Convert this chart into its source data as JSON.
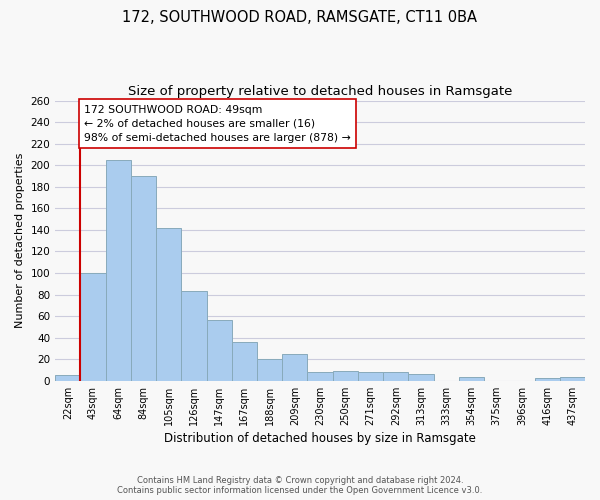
{
  "title": "172, SOUTHWOOD ROAD, RAMSGATE, CT11 0BA",
  "subtitle": "Size of property relative to detached houses in Ramsgate",
  "xlabel": "Distribution of detached houses by size in Ramsgate",
  "ylabel": "Number of detached properties",
  "bar_labels": [
    "22sqm",
    "43sqm",
    "64sqm",
    "84sqm",
    "105sqm",
    "126sqm",
    "147sqm",
    "167sqm",
    "188sqm",
    "209sqm",
    "230sqm",
    "250sqm",
    "271sqm",
    "292sqm",
    "313sqm",
    "333sqm",
    "354sqm",
    "375sqm",
    "396sqm",
    "416sqm",
    "437sqm"
  ],
  "bar_values": [
    5,
    100,
    205,
    190,
    142,
    83,
    56,
    36,
    20,
    25,
    8,
    9,
    8,
    8,
    6,
    0,
    4,
    0,
    0,
    3,
    4
  ],
  "bar_color": "#aaccee",
  "bar_edge_color": "#88aabb",
  "vline_x": 0.5,
  "vline_color": "#cc0000",
  "annotation_title": "172 SOUTHWOOD ROAD: 49sqm",
  "annotation_line1": "← 2% of detached houses are smaller (16)",
  "annotation_line2": "98% of semi-detached houses are larger (878) →",
  "annotation_box_color": "#ffffff",
  "annotation_box_edge": "#cc0000",
  "ylim": [
    0,
    260
  ],
  "yticks": [
    0,
    20,
    40,
    60,
    80,
    100,
    120,
    140,
    160,
    180,
    200,
    220,
    240,
    260
  ],
  "footer_line1": "Contains HM Land Registry data © Crown copyright and database right 2024.",
  "footer_line2": "Contains public sector information licensed under the Open Government Licence v3.0.",
  "bg_color": "#f8f8f8",
  "grid_color": "#ccccdd",
  "title_fontsize": 10.5,
  "subtitle_fontsize": 9.5
}
